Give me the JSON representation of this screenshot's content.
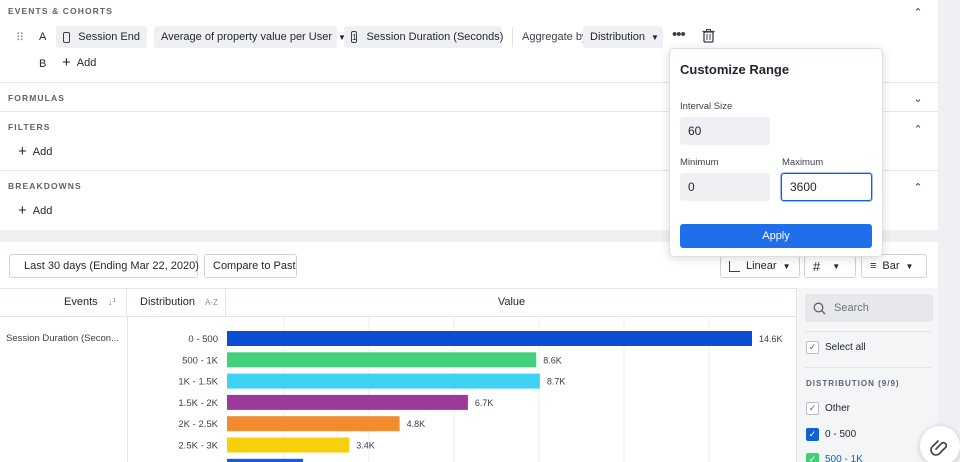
{
  "events_section": {
    "title": "EVENTS & COHORTS",
    "row_a": {
      "letter": "A",
      "event": "Session End",
      "measure": "Average of property value per User",
      "property_index": "1",
      "property": "Session Duration (Seconds)",
      "aggregate_label": "Aggregate by",
      "aggregate_value": "Distribution"
    },
    "row_b": {
      "letter": "B",
      "add_label": "Add"
    }
  },
  "formulas_section": {
    "title": "FORMULAS"
  },
  "filters_section": {
    "title": "FILTERS",
    "add_label": "Add"
  },
  "breakdowns_section": {
    "title": "BREAKDOWNS",
    "add_label": "Add"
  },
  "toolbar": {
    "date_range": "Last 30 days (Ending Mar 22, 2020)",
    "compare": "Compare to Past",
    "scale": "Linear",
    "chart_type": "Bar"
  },
  "table": {
    "col_events": "Events",
    "col_distribution": "Distribution",
    "col_distribution_sort": "A-Z",
    "col_value": "Value",
    "event_name": "Session Duration (Secon..."
  },
  "chart_data": {
    "type": "bar",
    "categories": [
      "0 - 500",
      "500 - 1K",
      "1K - 1.5K",
      "1.5K - 2K",
      "2K - 2.5K",
      "2.5K - 3K"
    ],
    "values": [
      14600,
      8600,
      8700,
      6700,
      4800,
      3400
    ],
    "value_labels": [
      "14.6K",
      "8.6K",
      "8.7K",
      "6.7K",
      "4.8K",
      "3.4K"
    ],
    "colors": [
      "#0a4fd3",
      "#43cf7c",
      "#3fd1f0",
      "#9c3a9c",
      "#f28a2e",
      "#f8cf0b"
    ],
    "xlim": [
      0,
      14600
    ]
  },
  "right_panel": {
    "search_placeholder": "Search",
    "select_all": "Select all",
    "group_title": "DISTRIBUTION (9/9)",
    "items": [
      "Other",
      "0 - 500",
      "500 - 1K"
    ]
  },
  "popup": {
    "title": "Customize Range",
    "interval_label": "Interval Size",
    "interval_value": "60",
    "min_label": "Minimum",
    "min_value": "0",
    "max_label": "Maximum",
    "max_value": "3600",
    "apply_label": "Apply"
  }
}
